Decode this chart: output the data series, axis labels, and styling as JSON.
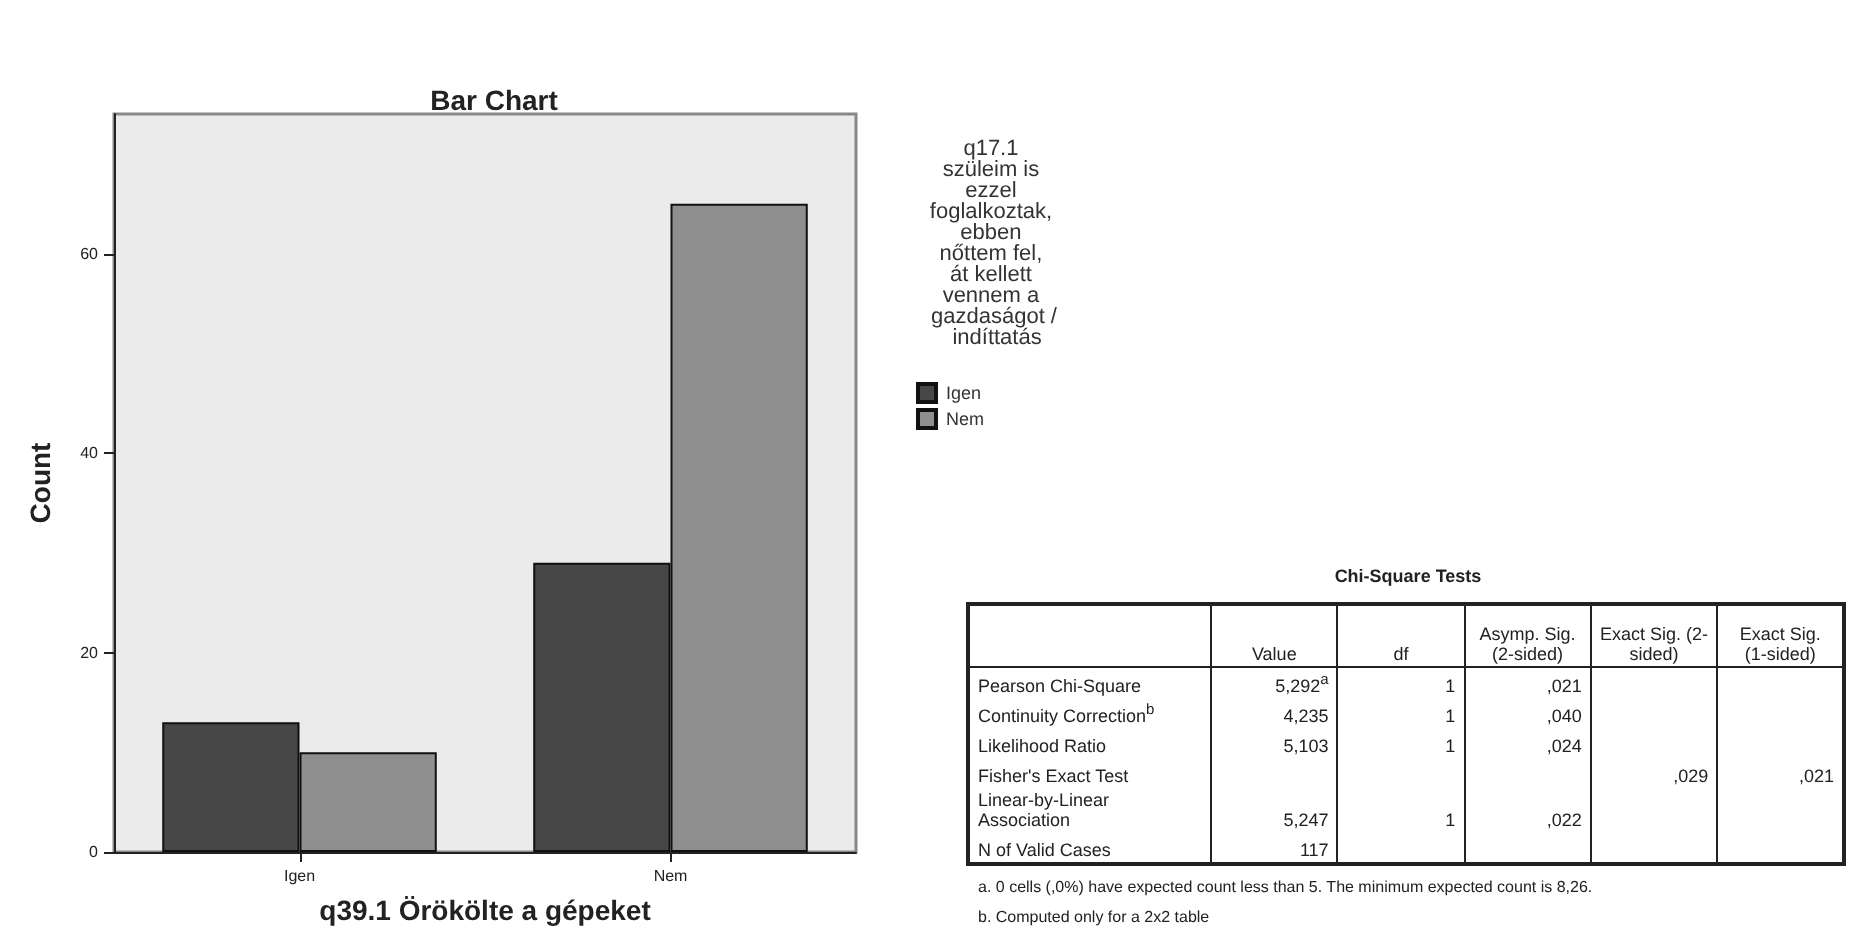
{
  "chart_data": [
    {
      "type": "bar",
      "title": "Bar Chart",
      "xlabel": "q39.1 Örökölte a gépeket",
      "ylabel": "Count",
      "legend_title": "q17.1 szüleim is ezzel foglalkoztak, ebben nőttem fel, át kellett vennem a gazdaságot / indíttatás",
      "categories": [
        "Igen",
        "Nem"
      ],
      "series": [
        {
          "name": "Igen",
          "color": "#474747",
          "values": [
            13,
            29
          ]
        },
        {
          "name": "Nem",
          "color": "#8f8f8f",
          "values": [
            10,
            65
          ]
        }
      ],
      "ylim": [
        0,
        74
      ],
      "yticks": [
        0,
        20,
        40,
        60
      ],
      "grid": false,
      "legend": "right"
    },
    {
      "type": "other",
      "title": "Chi-Square Tests",
      "categories": [
        "Value",
        "df",
        "Asymp. Sig. (2-sided)",
        "Exact Sig. (2-sided)",
        "Exact Sig. (1-sided)"
      ],
      "y_categories": [
        "Pearson Chi-Square",
        "Continuity Correction$^{b}$",
        "Likelihood Ratio",
        "Fisher's Exact Test",
        "Linear-by-Linear Association",
        "N of Valid Cases"
      ],
      "cell_labels": [
        [
          "5,292$^{a}$",
          "1",
          ",021",
          null,
          null
        ],
        [
          "4,235",
          "1",
          ",040",
          null,
          null
        ],
        [
          "5,103",
          "1",
          ",024",
          null,
          null
        ],
        [
          null,
          null,
          null,
          ",029",
          ",021"
        ],
        [
          "5,247",
          "1",
          ",022",
          null,
          null
        ],
        [
          "117",
          null,
          null,
          null,
          null
        ]
      ],
      "annotations": [
        "a. 0 cells (,0%) have expected count less than 5. The minimum expected count is 8,26.",
        "b. Computed only for a 2x2 table"
      ]
    }
  ]
}
